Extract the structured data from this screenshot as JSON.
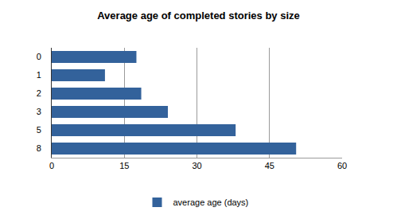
{
  "chart_data": {
    "type": "bar",
    "orientation": "horizontal",
    "title": "Average age of completed stories by size",
    "categories": [
      "0",
      "1",
      "2",
      "3",
      "5",
      "8"
    ],
    "series": [
      {
        "name": "average age (days)",
        "color": "#33629b",
        "values": [
          17.5,
          11,
          18.5,
          24,
          38,
          50.5
        ]
      }
    ],
    "xlim": [
      0,
      60
    ],
    "xticks": [
      0,
      15,
      30,
      45,
      60
    ],
    "grid": true,
    "legend": "bottom"
  }
}
